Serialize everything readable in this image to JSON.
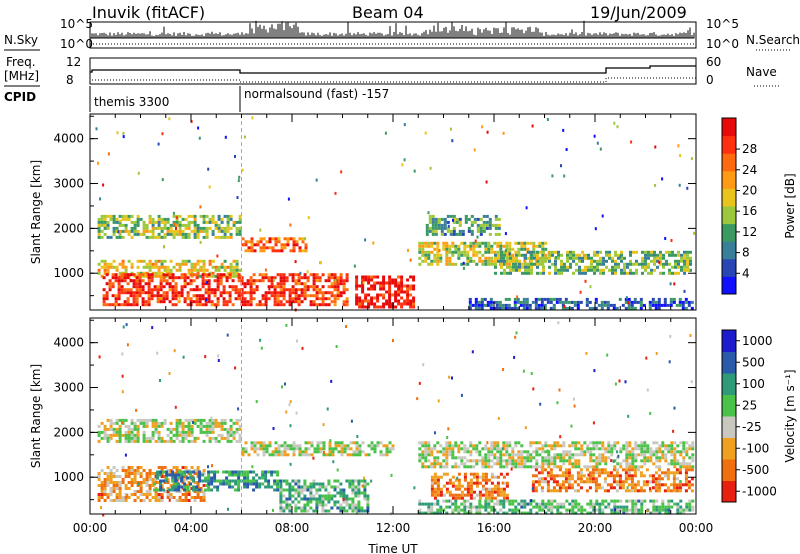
{
  "header": {
    "station": "Inuvik (fitACF)",
    "beam": "Beam 04",
    "date": "19/Jun/2009"
  },
  "left_labels": {
    "nsky": "N.Sky",
    "freq": "Freq.",
    "freq_unit": "[MHz]",
    "cpid": "CPID"
  },
  "right_labels": {
    "nsearch": "N.Search",
    "nave": "Nave"
  },
  "noise_axis": {
    "left_ticks": [
      "10^5",
      "10^0"
    ],
    "right_ticks": [
      "10^5",
      "10^0"
    ]
  },
  "freq_axis": {
    "left_ticks": [
      "12",
      "8"
    ],
    "right_ticks": [
      "60",
      "0"
    ]
  },
  "cpid_segments": [
    {
      "label": "themis 3300",
      "start_hour": 0
    },
    {
      "label": "normalsound (fast) -157",
      "start_hour": 6
    }
  ],
  "chart_data": [
    {
      "type": "heatmap",
      "title": "",
      "xlabel": "Time UT",
      "ylabel": "Slant Range [km]",
      "x_ticks": [
        "00:00",
        "04:00",
        "08:00",
        "12:00",
        "16:00",
        "20:00",
        "00:00"
      ],
      "xlim": [
        0,
        24
      ],
      "ylim": [
        180,
        4550
      ],
      "y_ticks": [
        1000,
        2000,
        3000,
        4000
      ],
      "colorbar": {
        "label": "Power [dB]",
        "ticks": [
          "4",
          "8",
          "12",
          "16",
          "20",
          "24",
          "28"
        ],
        "colors": [
          "#1010ff",
          "#2846b4",
          "#3a7f9a",
          "#3a9a62",
          "#9cc83c",
          "#e8c41c",
          "#ff9a14",
          "#ff6a10",
          "#ff3010",
          "#e80a0a"
        ]
      },
      "bands": [
        {
          "t0": 0.3,
          "t1": 5.9,
          "r0": 1800,
          "r1": 2300,
          "level": 0.45
        },
        {
          "t0": 0.3,
          "t1": 5.9,
          "r0": 900,
          "r1": 1300,
          "level": 0.55
        },
        {
          "t0": 0.5,
          "t1": 10.2,
          "r0": 280,
          "r1": 1000,
          "level": 0.85
        },
        {
          "t0": 6.0,
          "t1": 8.5,
          "r0": 1500,
          "r1": 1800,
          "level": 0.75
        },
        {
          "t0": 10.5,
          "t1": 12.8,
          "r0": 280,
          "r1": 950,
          "level": 0.92
        },
        {
          "t0": 13.3,
          "t1": 16.2,
          "r0": 1850,
          "r1": 2300,
          "level": 0.35
        },
        {
          "t0": 13.0,
          "t1": 18.0,
          "r0": 1200,
          "r1": 1700,
          "level": 0.5
        },
        {
          "t0": 16.0,
          "t1": 23.8,
          "r0": 1000,
          "r1": 1500,
          "level": 0.4
        },
        {
          "t0": 15.0,
          "t1": 23.9,
          "r0": 200,
          "r1": 450,
          "level": 0.2
        }
      ]
    },
    {
      "type": "heatmap",
      "title": "",
      "xlabel": "Time UT",
      "ylabel": "Slant Range [km]",
      "x_ticks": [
        "00:00",
        "04:00",
        "08:00",
        "12:00",
        "16:00",
        "20:00",
        "00:00"
      ],
      "xlim": [
        0,
        24
      ],
      "ylim": [
        180,
        4550
      ],
      "y_ticks": [
        1000,
        2000,
        3000,
        4000
      ],
      "colorbar": {
        "label": "Velocity [m s⁻¹]",
        "ticks": [
          "1000",
          "500",
          "100",
          "25",
          "-25",
          "-100",
          "-500",
          "-1000"
        ],
        "colors": [
          "#1c1ccc",
          "#2a5aaa",
          "#2f9a7a",
          "#4ac24a",
          "#c8c8c0",
          "#f0a020",
          "#f07010",
          "#e82010"
        ]
      },
      "bands": [
        {
          "t0": 0.3,
          "t1": 5.9,
          "r0": 1800,
          "r1": 2300,
          "level": 0.55
        },
        {
          "t0": 0.3,
          "t1": 4.5,
          "r0": 450,
          "r1": 1250,
          "level": 0.72
        },
        {
          "t0": 2.5,
          "t1": 7.5,
          "r0": 700,
          "r1": 1150,
          "level": 0.3
        },
        {
          "t0": 6.0,
          "t1": 12.0,
          "r0": 1500,
          "r1": 1800,
          "level": 0.55
        },
        {
          "t0": 7.5,
          "t1": 11.0,
          "r0": 250,
          "r1": 950,
          "level": 0.4
        },
        {
          "t0": 13.5,
          "t1": 16.5,
          "r0": 500,
          "r1": 1100,
          "level": 0.78
        },
        {
          "t0": 13.0,
          "t1": 23.9,
          "r0": 1200,
          "r1": 1800,
          "level": 0.55
        },
        {
          "t0": 17.5,
          "t1": 23.8,
          "r0": 700,
          "r1": 1200,
          "level": 0.78
        },
        {
          "t0": 13.0,
          "t1": 23.9,
          "r0": 200,
          "r1": 500,
          "level": 0.42
        }
      ]
    }
  ]
}
